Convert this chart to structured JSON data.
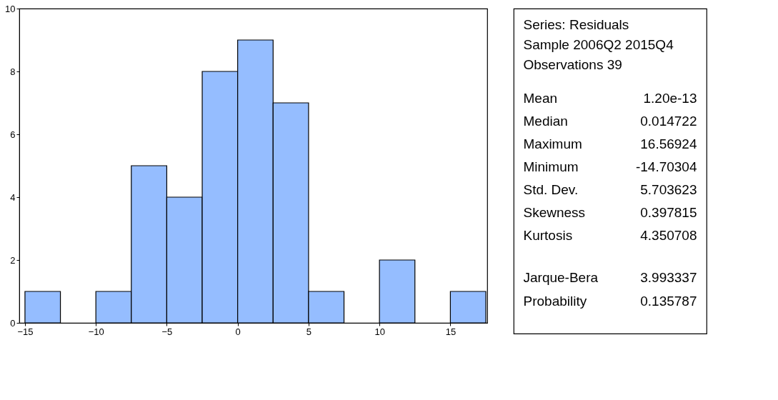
{
  "chart_data": {
    "type": "histogram",
    "bins": [
      -15,
      -12.5,
      -10,
      -7.5,
      -5,
      -2.5,
      0,
      2.5,
      5,
      7.5,
      10,
      12.5,
      15,
      17.5
    ],
    "values": [
      1,
      0,
      1,
      5,
      4,
      8,
      9,
      7,
      1,
      0,
      2,
      0,
      1
    ],
    "color": "#95bdff",
    "xlim": [
      -15.4,
      17.6
    ],
    "xticks": [
      -15,
      -10,
      -5,
      0,
      5,
      10,
      15
    ],
    "ylim": [
      0,
      10
    ],
    "yticks": [
      0,
      2,
      4,
      6,
      8,
      10
    ],
    "grid": false,
    "annotations": [
      "Series: Residuals",
      "Sample 2006Q2 2015Q4",
      "Observations 39",
      "Mean",
      "1.20e-13",
      "Median",
      "0.014722",
      "Maximum",
      "16.56924",
      "Minimum",
      "-14.70304",
      "Std. Dev.",
      "5.703623",
      "Skewness",
      "0.397815",
      "Kurtosis",
      "4.350708",
      "Jarque-Bera",
      "3.993337",
      "Probability",
      "0.135787"
    ]
  }
}
